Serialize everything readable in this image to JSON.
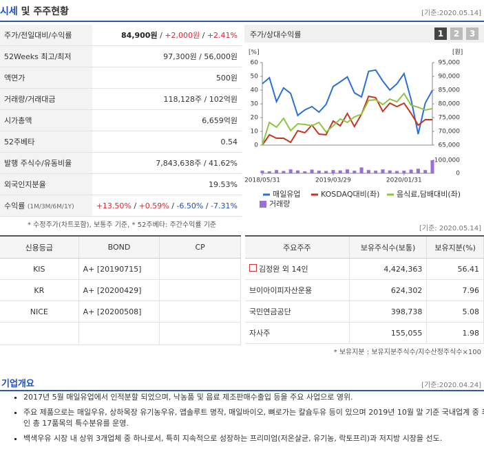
{
  "header": {
    "title_main": "시세",
    "title_rest": "및 주주현황",
    "date": "[기준:2020.05.14]"
  },
  "price": {
    "rows": [
      {
        "label": "주가/전일대비/수익률",
        "value": [
          {
            "text": "84,900원",
            "color": "#222222",
            "bold": true
          },
          {
            "text": " / ",
            "color": "#333333"
          },
          {
            "text": "+2,000원",
            "color": "#e0262f"
          },
          {
            "text": " / ",
            "color": "#333333"
          },
          {
            "text": "+2.41%",
            "color": "#e0262f"
          }
        ]
      },
      {
        "label": "52Weeks 최고/최저",
        "value": [
          {
            "text": "97,300원 / 56,000원",
            "color": "#333333"
          }
        ]
      },
      {
        "label": "액면가",
        "value": [
          {
            "text": "500원",
            "color": "#333333"
          }
        ]
      },
      {
        "label": "거래량/거래대금",
        "value": [
          {
            "text": "118,128주 / 102억원",
            "color": "#333333"
          }
        ]
      },
      {
        "label": "시가총액",
        "value": [
          {
            "text": "6,659억원",
            "color": "#333333"
          }
        ]
      },
      {
        "label": "52주베타",
        "value": [
          {
            "text": "0.54",
            "color": "#333333"
          }
        ]
      },
      {
        "label": "발행 주식수/유동비율",
        "value": [
          {
            "text": "7,843,638주 / 41.62%",
            "color": "#333333"
          }
        ]
      },
      {
        "label": "외국인지분율",
        "value": [
          {
            "text": "19.53%",
            "color": "#333333"
          }
        ]
      },
      {
        "label": "수익률",
        "note": "(1M/3M/6M/1Y)",
        "value": [
          {
            "text": "+13.50%",
            "color": "#e0262f"
          },
          {
            "text": " / ",
            "color": "#333333"
          },
          {
            "text": "+0.59%",
            "color": "#e0262f"
          },
          {
            "text": " / ",
            "color": "#333333"
          },
          {
            "text": "-6.50%",
            "color": "#1a4fc9"
          },
          {
            "text": " / ",
            "color": "#333333"
          },
          {
            "text": "-7.31%",
            "color": "#1a4fc9"
          }
        ]
      }
    ],
    "footnote": "* 수정주가(차트포함), 보통주 기준, * 52주베타: 주간수익률 기준"
  },
  "chart_panel": {
    "title": "주가/상대수익률",
    "buttons": [
      "1",
      "2",
      "3"
    ]
  },
  "chart_data": {
    "type": "line",
    "categories": [
      "2018/05/31",
      null,
      null,
      null,
      null,
      null,
      null,
      null,
      null,
      null,
      "2019/03/29",
      null,
      null,
      null,
      null,
      null,
      null,
      null,
      null,
      null,
      "2020/01/31",
      null,
      null,
      null,
      null
    ],
    "ylabel": "[%]",
    "y2label": "[원]",
    "ylim": [
      0,
      60
    ],
    "yticks": [
      0,
      10,
      20,
      30,
      40,
      50,
      60
    ],
    "y2lim": [
      65000,
      95000
    ],
    "y2ticks": [
      {
        "value": 65000,
        "label": "65,000"
      },
      {
        "value": 70000,
        "label": "70,000"
      },
      {
        "value": 75000,
        "label": "75,000"
      },
      {
        "value": 80000,
        "label": "80,000"
      },
      {
        "value": 85000,
        "label": "85,000"
      },
      {
        "value": 90000,
        "label": "90,000"
      },
      {
        "value": 95000,
        "label": "95,000"
      }
    ],
    "vlim": [
      0,
      100000
    ],
    "vticks": [
      0,
      {
        "value": 100000,
        "label": "100,000"
      }
    ],
    "series": [
      {
        "name": "매일유업",
        "color": "#2a6fd6",
        "axis": "y2",
        "values": [
          87300,
          89500,
          80800,
          85800,
          83800,
          75800,
          77800,
          79000,
          77000,
          79800,
          86300,
          88000,
          89800,
          84000,
          82500,
          91800,
          92300,
          88300,
          85000,
          87300,
          91000,
          81500,
          69000,
          80300,
          84900
        ]
      },
      {
        "name": "KOSDAQ대비(좌)",
        "color": "#c8321e",
        "values": [
          0,
          7.5,
          5,
          5,
          2,
          10.5,
          9,
          14.5,
          8,
          7.5,
          17.5,
          14,
          23,
          13.5,
          22.5,
          35.5,
          34.5,
          24.5,
          30.5,
          28,
          30.5,
          23,
          14.5,
          18.5,
          18.5
        ]
      },
      {
        "name": "음식료,담배대비(좌)",
        "color": "#8cc63f",
        "values": [
          0,
          16.5,
          13,
          19.5,
          10.5,
          15.5,
          15,
          14,
          16.5,
          9.5,
          14,
          19,
          16.5,
          20.5,
          22.5,
          32.5,
          33,
          29.5,
          33.5,
          31.5,
          37.5,
          29,
          27.5,
          25.5,
          26.5
        ]
      },
      {
        "name": "거래량",
        "color": "#9a6fd8",
        "axis": "volume",
        "values": [
          20000,
          15000,
          25000,
          18000,
          30000,
          22000,
          15000,
          28000,
          20000,
          18000,
          25000,
          22000,
          30000,
          20000,
          45000,
          25000,
          20000,
          30000,
          22000,
          18000,
          20000,
          28000,
          35000,
          25000,
          100000
        ]
      }
    ]
  },
  "credit": {
    "headers": [
      "신용등급",
      "BOND",
      "CP"
    ],
    "rows": [
      [
        "KIS",
        "A+ [20190715]",
        ""
      ],
      [
        "KR",
        "A+ [20200429]",
        ""
      ],
      [
        "NICE",
        "A+ [20200508]",
        ""
      ]
    ]
  },
  "holders": {
    "date": "[기준: 2020.05.14]",
    "headers": [
      "주요주주",
      "보유주식수(보통)",
      "보유지분(%)"
    ],
    "rows": [
      [
        "김정완 외 14인",
        "4,424,363",
        "56.41"
      ],
      [
        "브이아이피자산운용",
        "624,302",
        "7.96"
      ],
      [
        "국민연금공단",
        "398,738",
        "5.08"
      ],
      [
        "자사주",
        "155,055",
        "1.98"
      ]
    ],
    "footnote": "* 보유지분 : 보유지분주식수/지수산정주식수×100"
  },
  "company": {
    "title": "기업개요",
    "date": "[기준:2020.04.24]",
    "bullets": [
      "2017년 5월 매일유업에서 인적분할 되었으며, 낙농품 및 음료 제조판매수출입 등을 주요 사업으로 영위.",
      "주요 제품으로는 매일우유, 상하목장 유기농우유, 앱솔루트 명작, 매일바이오, 뼈로가는 칼슘두유 등이 있으며 2019년 10월 말 기준 국내업계 중 최다인 총 17품목의 특수분유를 운영.",
      "백색우유 시장 내 상위 3개업체 중 하나로서, 특히 지속적으로 성장하는 프리미엄(저온살균, 유기농, 락토프리)과 저지방 시장을 선도."
    ]
  }
}
